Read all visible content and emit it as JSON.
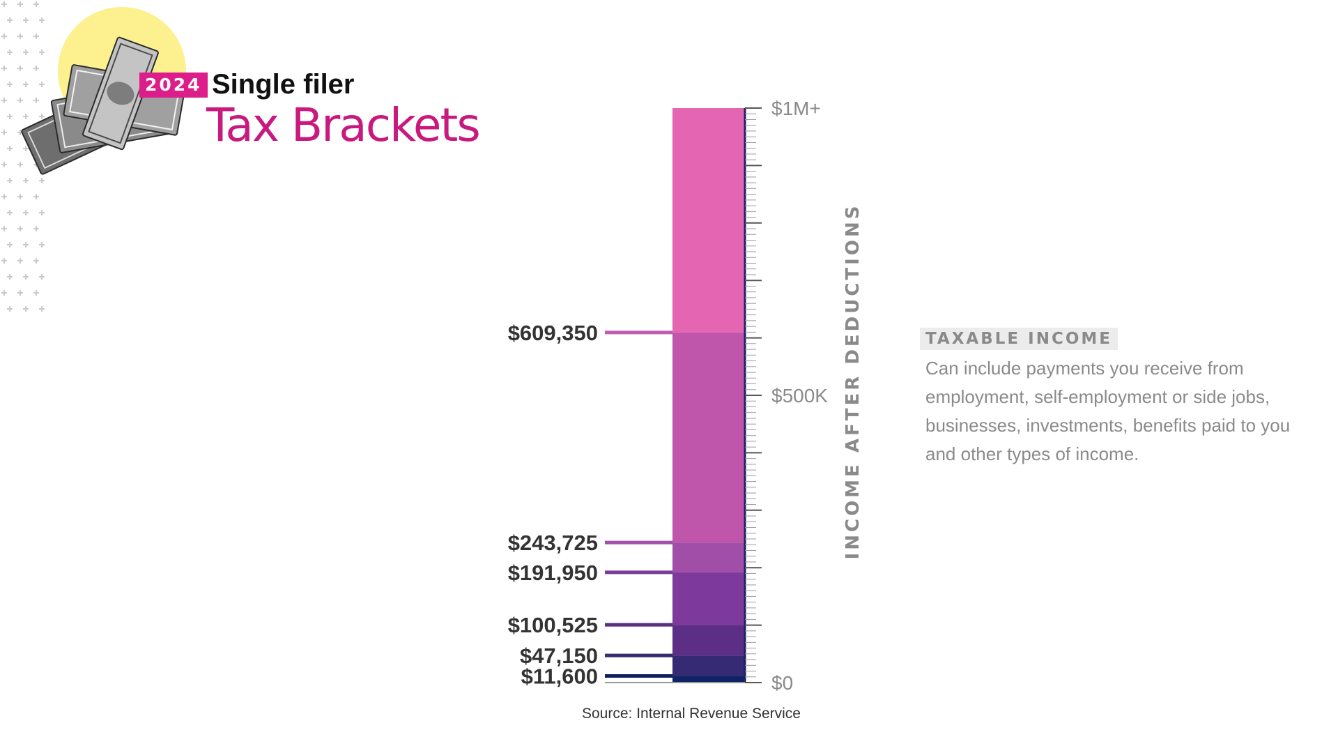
{
  "header": {
    "year": "2024",
    "filer_type": "Single filer",
    "title": "Tax Brackets"
  },
  "sidebar": {
    "heading": "TAXABLE INCOME",
    "body": "Can include payments you receive from employment, self-employment or side jobs, businesses, investments, benefits paid to you and other types of income."
  },
  "source": "Source: Internal Revenue Service",
  "colors": {
    "accent": "#dc1d8a",
    "sun": "#fcf08f"
  },
  "icons": [
    "money-stack-icon"
  ],
  "chart_data": {
    "type": "bar",
    "ylabel": "INCOME AFTER DEDUCTIONS",
    "ylim": [
      0,
      1000000
    ],
    "y_ticks": [
      {
        "value": 0,
        "label": "$0"
      },
      {
        "value": 500000,
        "label": "$500K"
      },
      {
        "value": 1000000,
        "label": "$1M+"
      }
    ],
    "grid": false,
    "brackets": [
      {
        "from": 0,
        "to": 11600,
        "color": "#0f2466"
      },
      {
        "from": 11600,
        "to": 47150,
        "color": "#352a73"
      },
      {
        "from": 47150,
        "to": 100525,
        "color": "#5c2e85"
      },
      {
        "from": 100525,
        "to": 191950,
        "color": "#7d3a9c"
      },
      {
        "from": 191950,
        "to": 243725,
        "color": "#a04ea8"
      },
      {
        "from": 243725,
        "to": 609350,
        "color": "#c056ab"
      },
      {
        "from": 609350,
        "to": 1000000,
        "color": "#e466b3"
      }
    ],
    "thresholds": [
      {
        "value": 609350,
        "label": "$609,350",
        "color": "#c35baf"
      },
      {
        "value": 243725,
        "label": "$243,725",
        "color": "#a251a8"
      },
      {
        "value": 191950,
        "label": "$191,950",
        "color": "#7a3c96"
      },
      {
        "value": 100525,
        "label": "$100,525",
        "color": "#58307f"
      },
      {
        "value": 47150,
        "label": "$47,150",
        "color": "#3a2a70"
      },
      {
        "value": 11600,
        "label": "$11,600",
        "color": "#121f5e"
      }
    ]
  }
}
